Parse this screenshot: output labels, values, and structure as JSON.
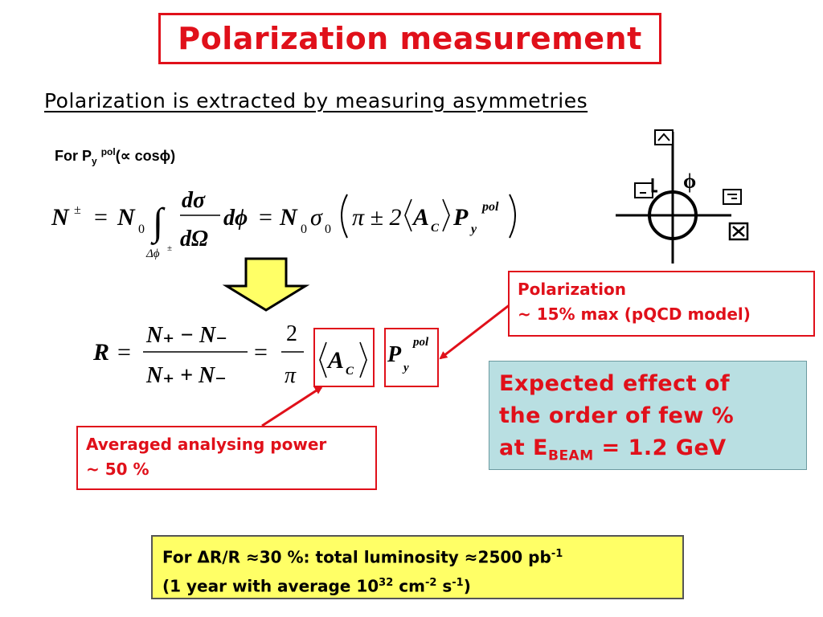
{
  "title": "Polarization measurement",
  "subtitle": "Polarization is extracted by measuring asymmetries",
  "for_py": {
    "prefix": "For P",
    "sub": "y",
    "sup": "pol",
    "suffix": "(∝ cosϕ)"
  },
  "equation1": {
    "lhs": "N",
    "lhs_sup": "±",
    "eq": "=",
    "n0": "N",
    "n0_sub": "0",
    "integral": "∫",
    "limit": "Δϕ",
    "limit_sup": "±",
    "frac_num": "dσ",
    "frac_den": "dΩ",
    "dphi": "dϕ",
    "rhs_n": "N",
    "rhs_n_sub": "0",
    "rhs_sigma": "σ",
    "rhs_sigma_sub": "0",
    "pi_pm": "π ± 2",
    "ac": "A",
    "ac_sub": "C",
    "p": "P",
    "p_sub": "y",
    "p_sup": "pol"
  },
  "equation2": {
    "lhs": "R",
    "eq": "=",
    "num": "N₊ − N₋",
    "den": "N₊ + N₋",
    "num2": "2",
    "den2": "π",
    "ac": "A",
    "ac_sub": "C",
    "p": "P",
    "p_sub": "y",
    "p_sup": "pol"
  },
  "polarization_callout": {
    "line1": "Polarization",
    "line2": "~ 15% max (pQCD model)"
  },
  "power_callout": {
    "line1": "Averaged analysing power",
    "line2": "~ 50 %"
  },
  "effect_box": {
    "line1": "Expected effect of",
    "line2": "the order of few %",
    "line3_prefix": "at E",
    "line3_sub": "BEAM",
    "line3_suffix": " = 1.2 GeV"
  },
  "luminosity_box": {
    "line1_a": "For ΔR/R ≈30 %: total luminosity ≈2500 pb",
    "line1_sup": "-1",
    "line2_a": "(1 year with average 10",
    "line2_sup1": "32",
    "line2_b": " cm",
    "line2_sup2": "-2",
    "line2_c": " s",
    "line2_sup3": "-1",
    "line2_d": ")"
  },
  "diagram": {
    "phi_label": "ϕ"
  },
  "colors": {
    "accent_red": "#e0101a",
    "effect_bg": "#b9dfe2",
    "lumi_bg": "#ffff66",
    "arrow_yellow": "#ffff66"
  }
}
